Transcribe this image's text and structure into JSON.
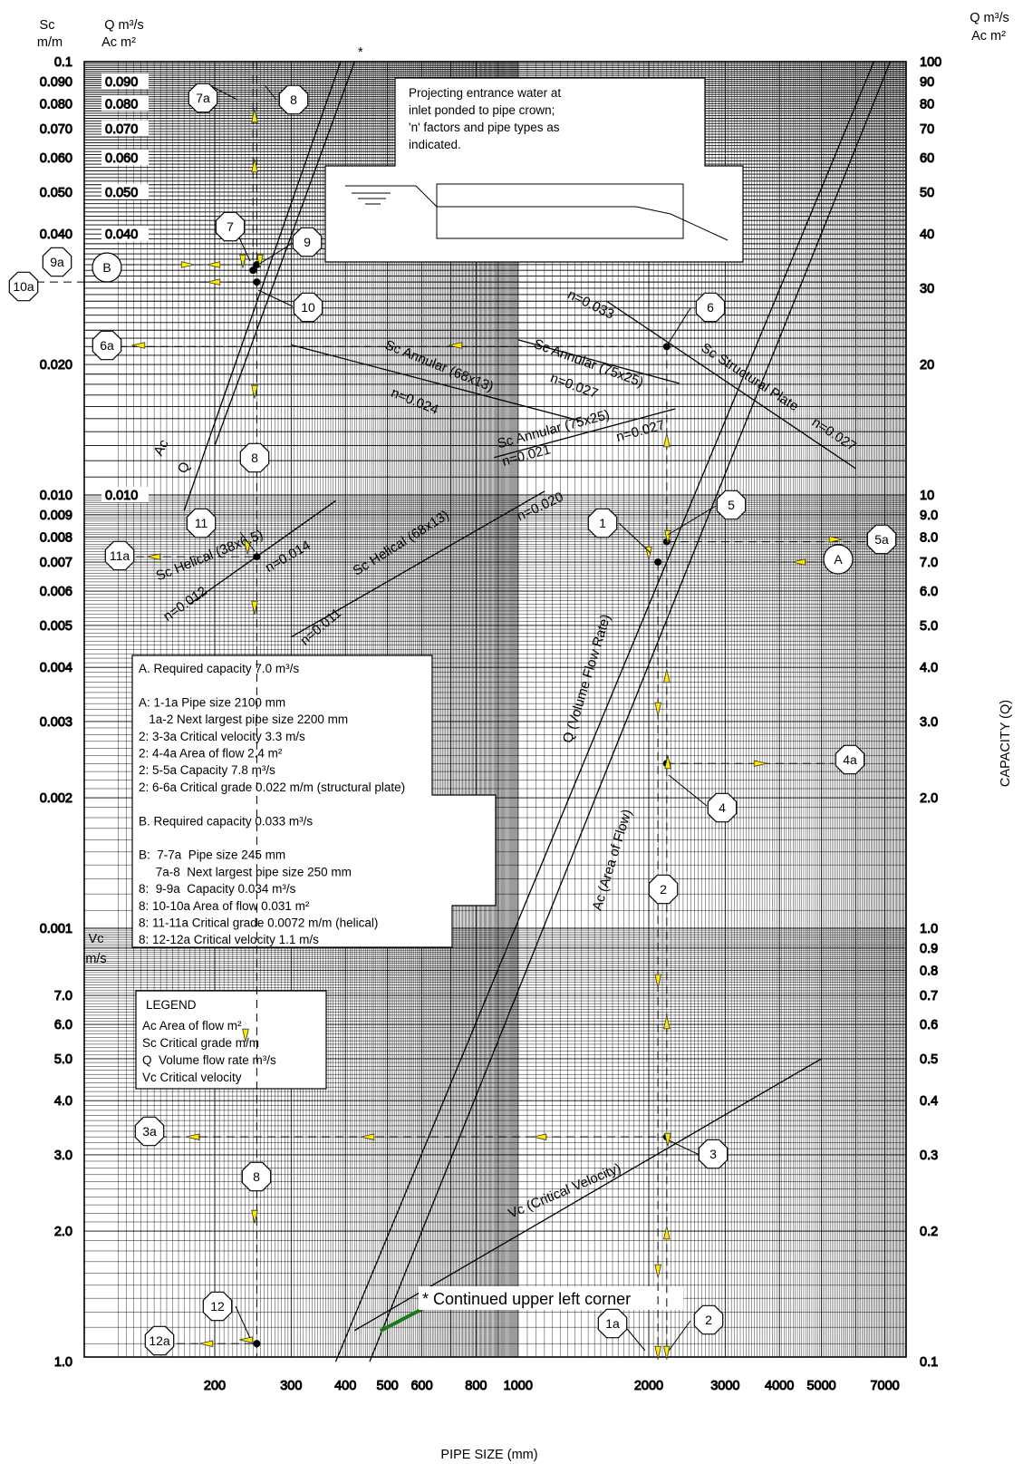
{
  "header": {
    "left_axis_sc": "Sc",
    "left_axis_sc_unit": "m/m",
    "left_axis_q": "Q m³/s",
    "left_axis_ac": "Ac m²",
    "right_axis_q": "Q m³/s",
    "right_axis_ac": "Ac m²",
    "right_axis_title": "CAPACITY (Q)",
    "x_axis_title": "PIPE SIZE (mm)",
    "vc_label": "Vc",
    "vc_unit": "m/s",
    "star_mark": "*"
  },
  "note_box": {
    "lines": [
      "Projecting entrance water at",
      "inlet ponded to pipe crown;",
      "'n' factors and pipe types as",
      "indicated."
    ]
  },
  "example_box": {
    "lines": [
      "A. Required capacity 7.0 m³/s",
      "",
      "A: 1-1a Pipe size 2100 mm",
      "   1a-2 Next largest pipe size 2200 mm",
      "2: 3-3a Critical velocity 3.3 m/s",
      "2: 4-4a Area of flow 2.4 m²",
      "2: 5-5a Capacity 7.8 m³/s",
      "2: 6-6a Critical grade 0.022 m/m (structural plate)",
      "",
      "B. Required capacity 0.033 m³/s",
      "",
      "B:  7-7a  Pipe size 245 mm",
      "     7a-8  Next largest pipe size 250 mm",
      "8:  9-9a  Capacity 0.034 m³/s",
      "8: 10-10a Area of flow 0.031 m²",
      "8: 11-11a Critical grade 0.0072 m/m (helical)",
      "8: 12-12a Critical velocity 1.1 m/s"
    ]
  },
  "legend": {
    "title": "LEGEND",
    "items": [
      "Ac Area of flow m²",
      "Sc Critical grade m/m",
      "Q  Volume flow rate m³/s",
      "Vc Critical velocity"
    ]
  },
  "continued_note": "* Continued upper left corner",
  "chart_data": {
    "type": "line",
    "x_axis": {
      "label": "PIPE SIZE (mm)",
      "scale": "log",
      "range": [
        100,
        8000
      ],
      "tick_labels": [
        "200",
        "300",
        "400",
        "500",
        "600",
        "800",
        "1000",
        "2000",
        "3000",
        "4000",
        "5000",
        "7000"
      ]
    },
    "sc_axis": {
      "label": "Sc m/m",
      "scale": "log",
      "range": [
        0.001,
        0.1
      ],
      "tick_labels": [
        "0.1",
        "0.090",
        "0.080",
        "0.070",
        "0.060",
        "0.050",
        "0.040",
        "0.020",
        "0.010",
        "0.009",
        "0.008",
        "0.007",
        "0.006",
        "0.005",
        "0.004",
        "0.003",
        "0.002",
        "0.001"
      ]
    },
    "q_ac_inner_labels": [
      "0.090",
      "0.080",
      "0.070",
      "0.060",
      "0.050",
      "0.040",
      "0.010"
    ],
    "vc_axis": {
      "label": "Vc m/s",
      "scale": "log",
      "range": [
        1.0,
        10.0
      ],
      "tick_labels": [
        "7.0",
        "6.0",
        "5.0",
        "4.0",
        "3.0",
        "2.0",
        "1.0"
      ]
    },
    "right_axis": {
      "label": "CAPACITY (Q)",
      "scale": "log",
      "range": [
        0.1,
        100
      ],
      "tick_labels": [
        "100",
        "90",
        "80",
        "70",
        "60",
        "50",
        "40",
        "30",
        "20",
        "10",
        "9.0",
        "8.0",
        "7.0",
        "6.0",
        "5.0",
        "4.0",
        "3.0",
        "2.0",
        "1.0",
        "0.9",
        "0.8",
        "0.7",
        "0.6",
        "0.5",
        "0.4",
        "0.3",
        "0.2",
        "0.1"
      ]
    },
    "series": [
      {
        "name": "Q (Volume Flow Rate)",
        "points": [
          [
            380,
            0.1
          ],
          [
            6600,
            100
          ]
        ],
        "label": "Q (Volume Flow Rate)"
      },
      {
        "name": "Ac (Area of Flow)",
        "points": [
          [
            455,
            0.1
          ],
          [
            7200,
            100
          ]
        ],
        "label": "Ac (Area of Flow)"
      },
      {
        "name": "Vc (Critical Velocity)",
        "points": [
          [
            420,
            1.18
          ],
          [
            5000,
            5.0
          ]
        ],
        "label": "Vc (Critical Velocity)"
      },
      {
        "name": "Q",
        "points": [
          [
            200,
            0.013
          ],
          [
            420,
            0.1
          ]
        ],
        "label": "Q"
      },
      {
        "name": "Ac",
        "points": [
          [
            170,
            0.0092
          ],
          [
            390,
            0.1
          ]
        ],
        "label": "Ac"
      },
      {
        "name": "Sc Structural Plate n=0.033 / n=0.027",
        "points": [
          [
            1600,
            0.028
          ],
          [
            6000,
            0.0115
          ]
        ],
        "labels": [
          "n=0.033",
          "Sc Structural Plate",
          "n=0.027"
        ]
      },
      {
        "name": "Sc Annular (75x25) n=0.027",
        "points": [
          [
            1000,
            0.0228
          ],
          [
            2350,
            0.0181
          ]
        ],
        "labels": [
          "Sc Annular (75x25)",
          "n=0.027"
        ]
      },
      {
        "name": "Sc Annular (68x13) n=0.024",
        "points": [
          [
            300,
            0.0222
          ],
          [
            1400,
            0.0148
          ]
        ],
        "labels": [
          "Sc Annular (68x13)",
          "n=0.024"
        ]
      },
      {
        "name": "Sc Annular (75x25) n=0.021 / n=0.027",
        "points": [
          [
            880,
            0.0122
          ],
          [
            2300,
            0.0158
          ]
        ],
        "labels": [
          "Sc Annular (75x25)",
          "n=0.021",
          "n=0.027"
        ]
      },
      {
        "name": "Sc Helical (68x13) n=0.011 / n=0.020",
        "points": [
          [
            300,
            0.0047
          ],
          [
            1150,
            0.0102
          ]
        ],
        "labels": [
          "Sc Helical (68x13)",
          "n=0.011",
          "n=0.020"
        ]
      },
      {
        "name": "Sc Helical (38x6.5) n=0.012 / n=0.014",
        "points": [
          [
            175,
            0.0056
          ],
          [
            380,
            0.0097
          ]
        ],
        "labels": [
          "Sc Helical (38x6.5)",
          "n=0.012",
          "n=0.014"
        ]
      }
    ],
    "example_points": [
      {
        "id": "1",
        "pipe_mm": 2100,
        "q": 7.0
      },
      {
        "id": "5",
        "pipe_mm": 2200,
        "q": 7.8
      },
      {
        "id": "4",
        "pipe_mm": 2200,
        "ac": 2.4
      },
      {
        "id": "6",
        "pipe_mm": 2200,
        "sc": 0.022
      },
      {
        "id": "3",
        "pipe_mm": 2200,
        "vc": 3.3
      },
      {
        "id": "7",
        "pipe_mm": 245,
        "q": 0.033
      },
      {
        "id": "9",
        "pipe_mm": 250,
        "q": 0.034
      },
      {
        "id": "10",
        "pipe_mm": 250,
        "ac": 0.031
      },
      {
        "id": "11",
        "pipe_mm": 250,
        "sc": 0.0072
      },
      {
        "id": "12",
        "pipe_mm": 250,
        "vc": 1.1
      }
    ],
    "markers": [
      "A",
      "B",
      "1",
      "1a",
      "2",
      "3",
      "3a",
      "4",
      "4a",
      "5",
      "5a",
      "6",
      "6a",
      "7",
      "7a",
      "8",
      "9",
      "9a",
      "10",
      "10a",
      "11",
      "11a",
      "12",
      "12a"
    ]
  }
}
